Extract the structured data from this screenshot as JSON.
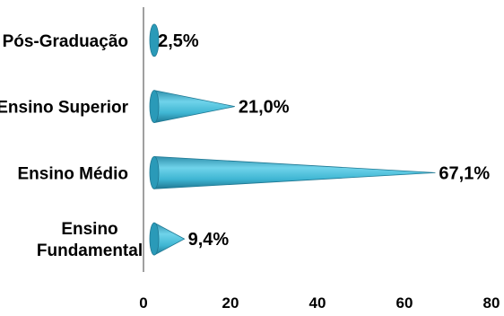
{
  "chart_data": {
    "type": "bar",
    "orientation": "horizontal",
    "categories": [
      "Pós-Graduação",
      "Ensino Superior",
      "Ensino Médio",
      "Ensino Fundamental"
    ],
    "category_lines": [
      [
        "Pós-Graduação"
      ],
      [
        "Ensino Superior"
      ],
      [
        "Ensino Médio"
      ],
      [
        "Ensino",
        "Fundamental"
      ]
    ],
    "values": [
      2.5,
      21.0,
      67.1,
      9.4
    ],
    "data_labels": [
      "2,5%",
      "21,0%",
      "67,1%",
      "9,4%"
    ],
    "xlim": [
      0,
      80
    ],
    "x_ticks": [
      0,
      20,
      40,
      60,
      80
    ],
    "x_tick_labels": [
      "0",
      "20",
      "40",
      "60",
      "80"
    ],
    "bar_shape": "cone",
    "bar_color": "#3FB6D3",
    "grid": false,
    "legend": "none"
  }
}
